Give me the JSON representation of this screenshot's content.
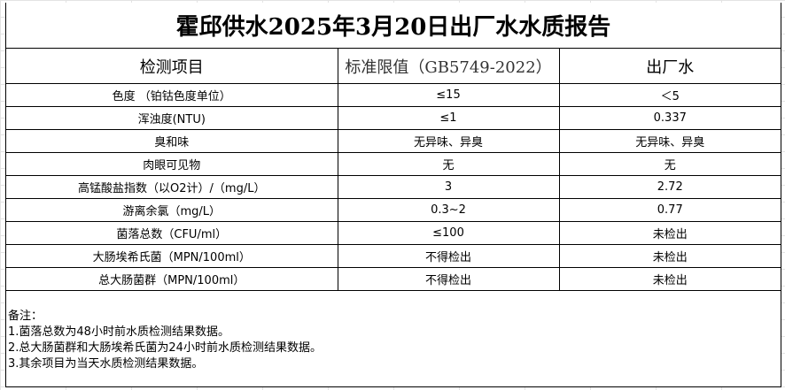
{
  "title": "霍邱供水2025年3月20日出厂水水质报告",
  "columns": [
    "检测项目",
    "标准限值（GB5749-2022）",
    "出厂水"
  ],
  "rows": [
    [
      "色度 （铂钴色度单位）",
      "≤15",
      "＜5"
    ],
    [
      "浑浊度(NTU)",
      "≤1",
      "0.337"
    ],
    [
      "臭和味",
      "无异味、异臭",
      "无异味、异臭"
    ],
    [
      "肉眼可见物",
      "无",
      "无"
    ],
    [
      "高锰酸盐指数（以O2计）/（mg/L）",
      "3",
      "2.72"
    ],
    [
      "游离余氯（mg/L）",
      "0.3~2",
      "0.77"
    ],
    [
      "菌落总数（CFU/ml）",
      "≤100",
      "未检出"
    ],
    [
      "大肠埃希氏菌（MPN/100ml）",
      "不得检出",
      "未检出"
    ],
    [
      "总大肠菌群（MPN/100ml）",
      "不得检出",
      "未检出"
    ]
  ],
  "notes": {
    "heading": "备注：",
    "items": [
      "1.菌落总数为48小时前水质检测结果数据。",
      "2.总大肠菌群和大肠埃希氏菌为24小时前水质检测结果数据。",
      "3.其余项目为当天水质检测结果数据。"
    ]
  }
}
